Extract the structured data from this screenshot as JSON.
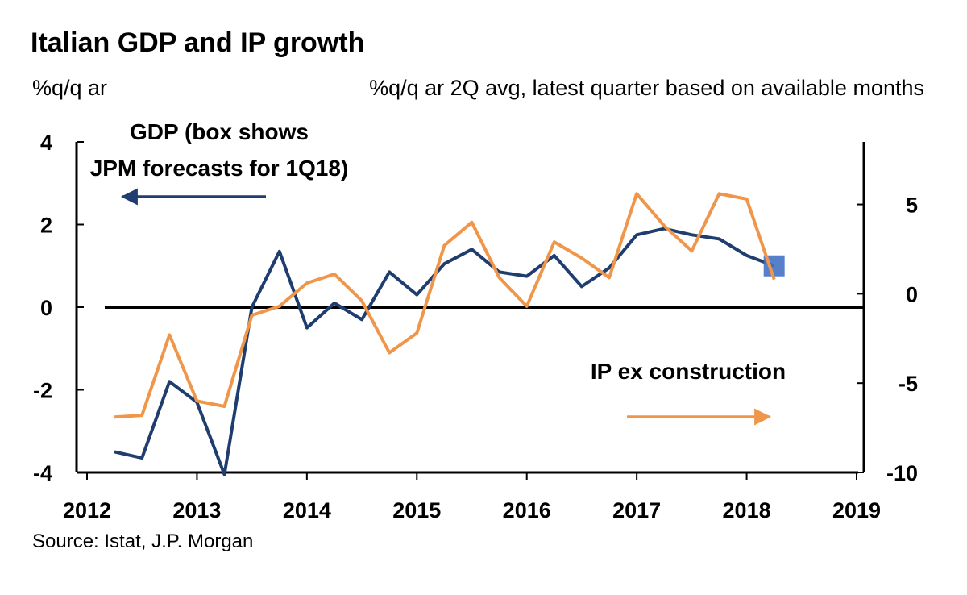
{
  "chart_data": {
    "type": "line",
    "title": "Italian GDP and IP growth",
    "left_axis_unit": "%q/q ar",
    "right_axis_unit": "%q/q ar 2Q avg, latest quarter based on available months",
    "source": "Source: Istat, J.P. Morgan",
    "xlim": [
      2012,
      2019
    ],
    "x_ticks": [
      "2012",
      "2013",
      "2014",
      "2015",
      "2016",
      "2017",
      "2018",
      "2019"
    ],
    "y_left": {
      "ylim": [
        -4,
        4
      ],
      "ticks": [
        "-4",
        "-2",
        "0",
        "2",
        "4"
      ]
    },
    "y_right": {
      "ylim": [
        -10,
        8.5
      ],
      "ticks": [
        "-10",
        "-5",
        "0",
        "5"
      ]
    },
    "zero_line": true,
    "grid": false,
    "series": [
      {
        "name": "GDP",
        "axis": "left",
        "color": "#1f3d6e",
        "x": [
          2012.25,
          2012.5,
          2012.75,
          2013.0,
          2013.25,
          2013.5,
          2013.75,
          2014.0,
          2014.25,
          2014.5,
          2014.75,
          2015.0,
          2015.25,
          2015.5,
          2015.75,
          2016.0,
          2016.25,
          2016.5,
          2016.75,
          2017.0,
          2017.25,
          2017.5,
          2017.75,
          2018.0,
          2018.25
        ],
        "values": [
          -3.5,
          -3.65,
          -1.8,
          -2.3,
          -4.05,
          0.0,
          1.35,
          -0.5,
          0.1,
          -0.3,
          0.85,
          0.3,
          1.05,
          1.4,
          0.85,
          0.75,
          1.25,
          0.5,
          0.95,
          1.75,
          1.9,
          1.75,
          1.65,
          1.25,
          1.0
        ],
        "forecast": {
          "x": 2018.25,
          "value": 1.0,
          "label": "JPM forecasts for 1Q18"
        }
      },
      {
        "name": "IP ex construction",
        "axis": "right",
        "color": "#f0964a",
        "x": [
          2012.25,
          2012.5,
          2012.75,
          2013.0,
          2013.25,
          2013.5,
          2013.75,
          2014.0,
          2014.25,
          2014.5,
          2014.75,
          2015.0,
          2015.25,
          2015.5,
          2015.75,
          2016.0,
          2016.25,
          2016.5,
          2016.75,
          2017.0,
          2017.25,
          2017.5,
          2017.75,
          2018.0,
          2018.25
        ],
        "values": [
          -6.9,
          -6.8,
          -2.3,
          -6.0,
          -6.3,
          -1.2,
          -0.7,
          0.6,
          1.1,
          -0.4,
          -3.3,
          -2.2,
          2.7,
          4.0,
          0.9,
          -0.7,
          2.9,
          2.0,
          0.9,
          5.6,
          3.8,
          2.4,
          5.6,
          5.3,
          0.8
        ]
      }
    ],
    "annotations": {
      "gdp_label_line1": "GDP (box shows",
      "gdp_label_line2": "JPM forecasts for 1Q18)",
      "ip_label": "IP ex construction"
    }
  }
}
